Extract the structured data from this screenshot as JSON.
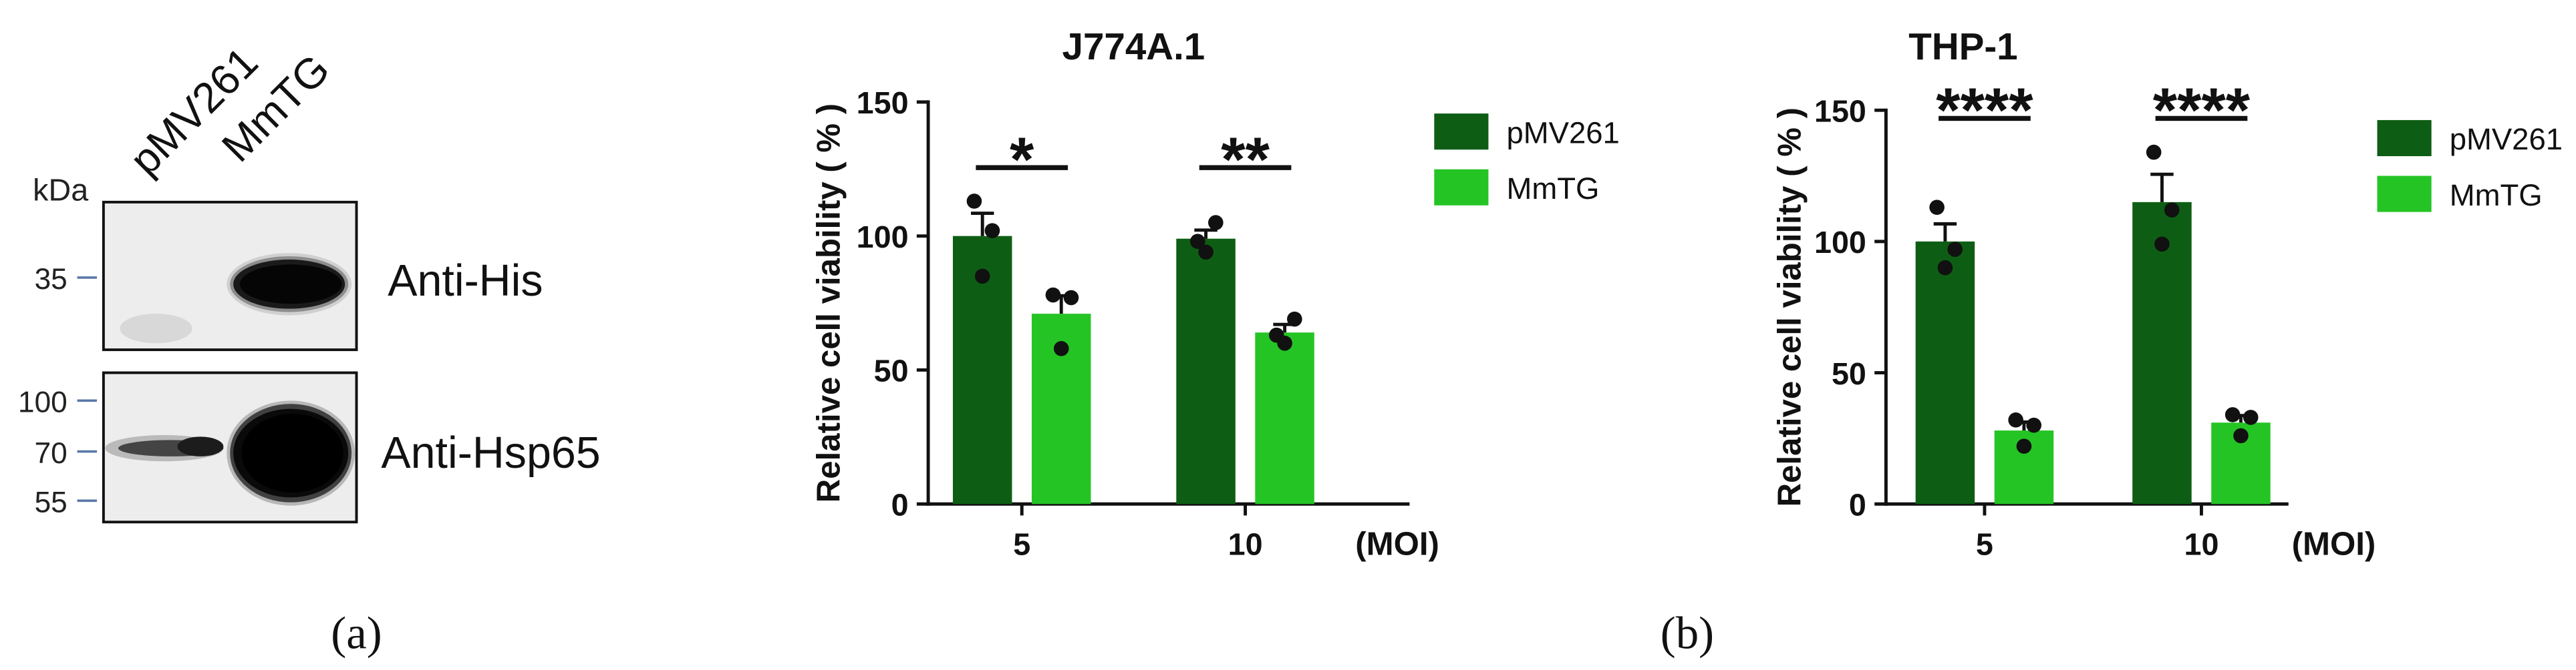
{
  "figure": {
    "panel_a": {
      "lanes": [
        "pMV261",
        "MmTG"
      ],
      "kda_label": "kDa",
      "blots": [
        {
          "antibody": "Anti-His",
          "markers": [
            "35"
          ]
        },
        {
          "antibody": "Anti-Hsp65",
          "markers": [
            "100",
            "70",
            "55"
          ]
        }
      ],
      "caption": "(a)"
    },
    "panel_b": {
      "caption": "(b)"
    }
  },
  "colors": {
    "points": "#111111",
    "marker_ticks": "#5a78a8"
  },
  "chart_data": [
    {
      "type": "bar",
      "title": "J774A.1",
      "categories": [
        "5",
        "10"
      ],
      "xlabel": "(MOI)",
      "ylabel": "Relative cell viability ( % )",
      "ylim": [
        0,
        150
      ],
      "yticks": [
        0,
        50,
        100,
        150
      ],
      "grid": false,
      "legend": "right",
      "series": [
        {
          "name": "pMV261",
          "color": "#0d5e14",
          "values": [
            100,
            99
          ],
          "error": [
            8.5,
            3.2
          ],
          "points": [
            [
              113,
              102,
              85
            ],
            [
              98,
              105,
              94
            ]
          ]
        },
        {
          "name": "MmTG",
          "color": "#25c425",
          "values": [
            71,
            64
          ],
          "error": [
            6.7,
            3.0
          ],
          "points": [
            [
              78,
              77,
              58
            ],
            [
              63,
              69,
              60
            ]
          ]
        }
      ],
      "significance": [
        "*",
        "**"
      ]
    },
    {
      "type": "bar",
      "title": "THP-1",
      "categories": [
        "5",
        "10"
      ],
      "xlabel": "(MOI)",
      "ylabel": "Relative cell viability ( % )",
      "ylim": [
        0,
        150
      ],
      "yticks": [
        0,
        50,
        100,
        150
      ],
      "grid": false,
      "legend": "right",
      "series": [
        {
          "name": "pMV261",
          "color": "#0d5e14",
          "values": [
            100,
            115
          ],
          "error": [
            6.7,
            10.6
          ],
          "points": [
            [
              113,
              97,
              90
            ],
            [
              134,
              112,
              99
            ]
          ]
        },
        {
          "name": "MmTG",
          "color": "#25c425",
          "values": [
            28,
            31
          ],
          "error": [
            3.2,
            2.7
          ],
          "points": [
            [
              32,
              30,
              22
            ],
            [
              34,
              33,
              26
            ]
          ]
        }
      ],
      "significance": [
        "****",
        "****"
      ]
    }
  ]
}
